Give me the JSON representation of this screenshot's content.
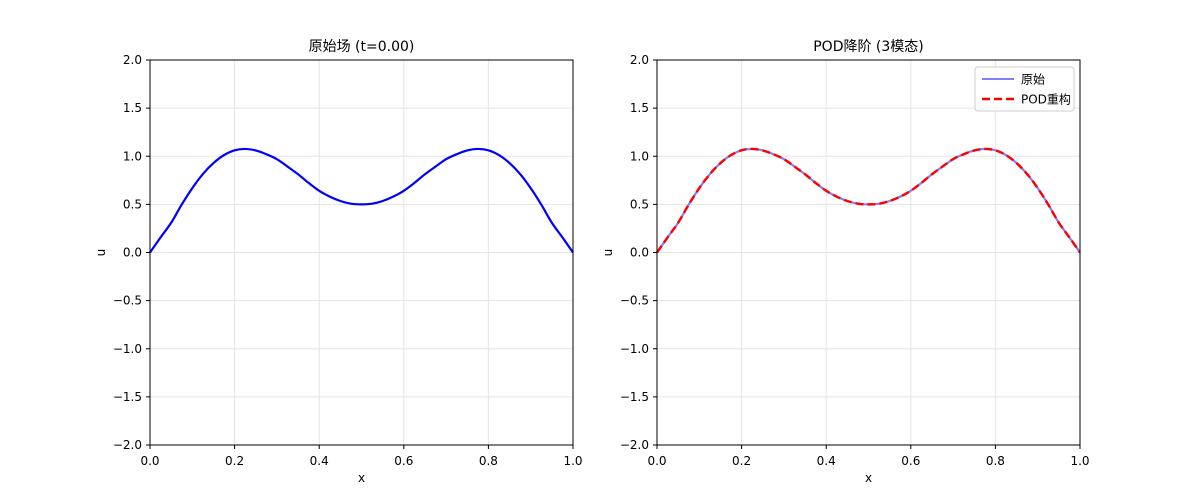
{
  "chart_data": [
    {
      "type": "line",
      "title": "原始场 (t=0.00)",
      "xlabel": "x",
      "ylabel": "u",
      "xlim": [
        0.0,
        1.0
      ],
      "ylim": [
        -2.0,
        2.0
      ],
      "xticks": [
        "0.0",
        "0.2",
        "0.4",
        "0.6",
        "0.8",
        "1.0"
      ],
      "yticks": [
        "2.0",
        "1.5",
        "1.0",
        "0.5",
        "0.0",
        "−0.5",
        "−1.0",
        "−1.5",
        "−2.0"
      ],
      "grid": true,
      "x": [
        0,
        0.025,
        0.05,
        0.075,
        0.1,
        0.125,
        0.15,
        0.175,
        0.2,
        0.225,
        0.25,
        0.275,
        0.3,
        0.325,
        0.35,
        0.375,
        0.4,
        0.425,
        0.45,
        0.475,
        0.5,
        0.525,
        0.55,
        0.575,
        0.6,
        0.625,
        0.65,
        0.675,
        0.7,
        0.725,
        0.75,
        0.775,
        0.8,
        0.825,
        0.85,
        0.875,
        0.9,
        0.925,
        0.95,
        0.975,
        1.0
      ],
      "series": [
        {
          "color": "#0000ff",
          "values": [
            0.0,
            0.157,
            0.309,
            0.498,
            0.669,
            0.815,
            0.929,
            1.012,
            1.062,
            1.076,
            1.06,
            1.021,
            0.97,
            0.893,
            0.813,
            0.723,
            0.641,
            0.58,
            0.535,
            0.507,
            0.5,
            0.507,
            0.535,
            0.58,
            0.641,
            0.723,
            0.813,
            0.893,
            0.97,
            1.021,
            1.06,
            1.076,
            1.062,
            1.012,
            0.929,
            0.815,
            0.669,
            0.498,
            0.309,
            0.157,
            0.0
          ]
        }
      ]
    },
    {
      "type": "line",
      "title": "POD降阶 (3模态)",
      "xlabel": "x",
      "ylabel": "u",
      "xlim": [
        0.0,
        1.0
      ],
      "ylim": [
        -2.0,
        2.0
      ],
      "xticks": [
        "0.0",
        "0.2",
        "0.4",
        "0.6",
        "0.8",
        "1.0"
      ],
      "yticks": [
        "2.0",
        "1.5",
        "1.0",
        "0.5",
        "0.0",
        "−0.5",
        "−1.0",
        "−1.5",
        "−2.0"
      ],
      "grid": true,
      "legend_placement": "top-right",
      "x": [
        0,
        0.025,
        0.05,
        0.075,
        0.1,
        0.125,
        0.15,
        0.175,
        0.2,
        0.225,
        0.25,
        0.275,
        0.3,
        0.325,
        0.35,
        0.375,
        0.4,
        0.425,
        0.45,
        0.475,
        0.5,
        0.525,
        0.55,
        0.575,
        0.6,
        0.625,
        0.65,
        0.675,
        0.7,
        0.725,
        0.75,
        0.775,
        0.8,
        0.825,
        0.85,
        0.875,
        0.9,
        0.925,
        0.95,
        0.975,
        1.0
      ],
      "series": [
        {
          "name": "原始",
          "color": "#8080ff",
          "style": "solid",
          "values": [
            0.0,
            0.157,
            0.309,
            0.498,
            0.669,
            0.815,
            0.929,
            1.012,
            1.062,
            1.076,
            1.06,
            1.021,
            0.97,
            0.893,
            0.813,
            0.723,
            0.641,
            0.58,
            0.535,
            0.507,
            0.5,
            0.507,
            0.535,
            0.58,
            0.641,
            0.723,
            0.813,
            0.893,
            0.97,
            1.021,
            1.06,
            1.076,
            1.062,
            1.012,
            0.929,
            0.815,
            0.669,
            0.498,
            0.309,
            0.157,
            0.0
          ]
        },
        {
          "name": "POD重构",
          "color": "#ff0000",
          "style": "dashed",
          "values": [
            0.0,
            0.157,
            0.309,
            0.498,
            0.669,
            0.815,
            0.929,
            1.012,
            1.062,
            1.076,
            1.06,
            1.021,
            0.97,
            0.893,
            0.813,
            0.723,
            0.641,
            0.58,
            0.535,
            0.507,
            0.5,
            0.507,
            0.535,
            0.58,
            0.641,
            0.723,
            0.813,
            0.893,
            0.97,
            1.021,
            1.06,
            1.076,
            1.062,
            1.012,
            0.929,
            0.815,
            0.669,
            0.498,
            0.309,
            0.157,
            0.0
          ]
        }
      ]
    }
  ]
}
